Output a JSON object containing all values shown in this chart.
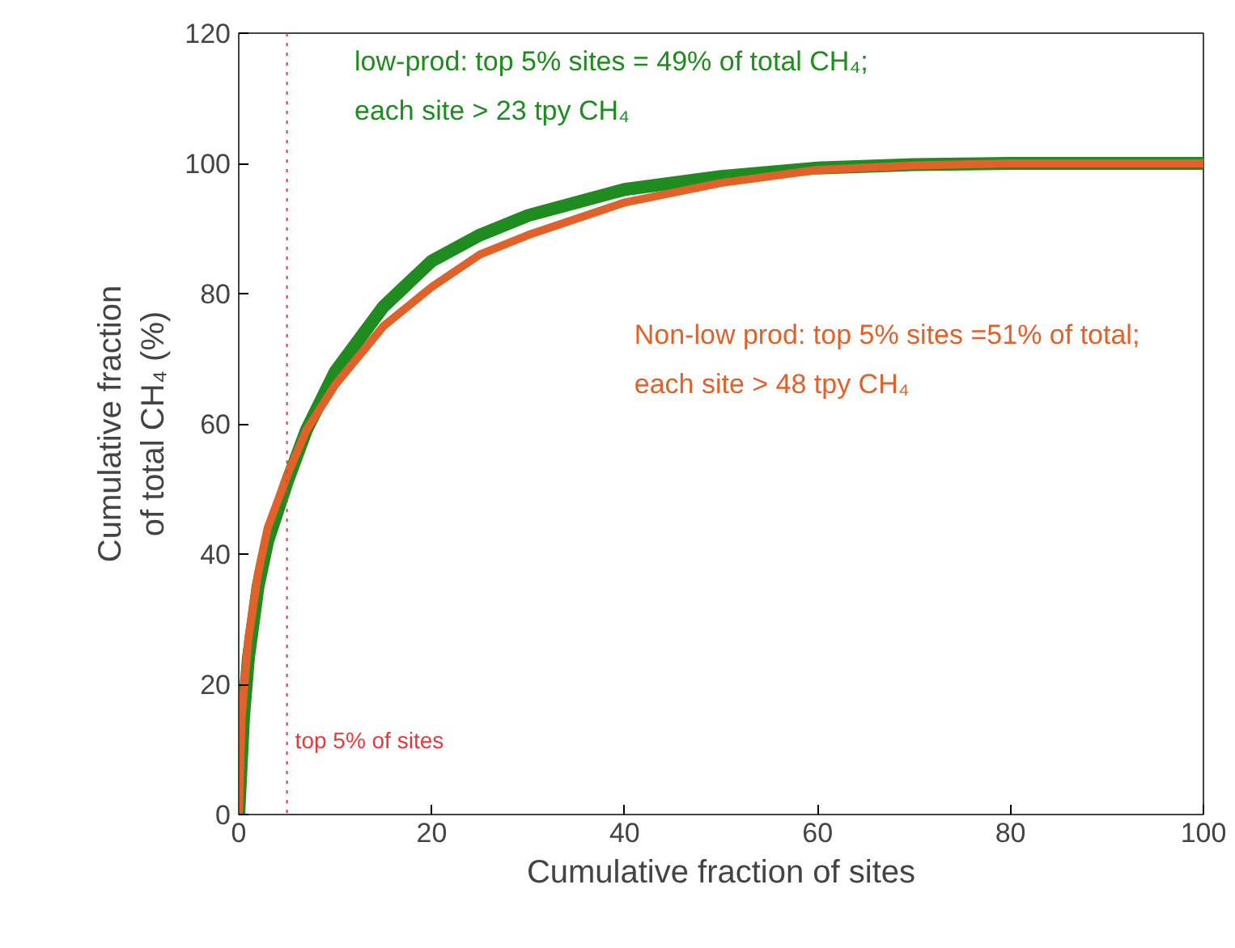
{
  "chart_data": {
    "type": "line",
    "xlabel": "Cumulative fraction of sites",
    "ylabel": "Cumulative fraction\nof total CH₄ (%)",
    "xlim": [
      0,
      100
    ],
    "ylim": [
      0,
      120
    ],
    "xticks": [
      0,
      20,
      40,
      60,
      80,
      100
    ],
    "yticks": [
      0,
      20,
      40,
      60,
      80,
      100,
      120
    ],
    "grid": false,
    "legend": false,
    "line_style": "solid",
    "marker": "none",
    "series": [
      {
        "name": "low-prod: top 5% sites = 49% of total CH₄;\neach site > 23 tpy CH₄",
        "color": "#1e8c1e",
        "x": [
          0,
          0.5,
          1,
          2,
          3,
          5,
          7,
          10,
          15,
          20,
          25,
          30,
          40,
          50,
          60,
          70,
          80,
          100
        ],
        "values": [
          0,
          15,
          24,
          35,
          42,
          51,
          59,
          68,
          78,
          85,
          89,
          92,
          96,
          98,
          99.3,
          99.8,
          100,
          100
        ]
      },
      {
        "name": "Non-low prod: top 5% sites =51% of total;\neach site > 48 tpy CH₄",
        "color": "#e0622a",
        "x": [
          0,
          0.3,
          0.7,
          1,
          2,
          3,
          5,
          7,
          10,
          15,
          20,
          25,
          30,
          40,
          50,
          60,
          70,
          80,
          100
        ],
        "values": [
          0,
          15,
          22,
          27,
          37,
          44,
          52,
          59,
          66,
          75,
          81,
          86,
          89,
          94,
          97,
          99,
          99.7,
          100,
          100
        ]
      }
    ],
    "ref_lines": [
      {
        "axis": "x",
        "value": 5,
        "label": "top 5% of sites",
        "color": "#e8383d",
        "line_style": "dotted"
      }
    ]
  }
}
